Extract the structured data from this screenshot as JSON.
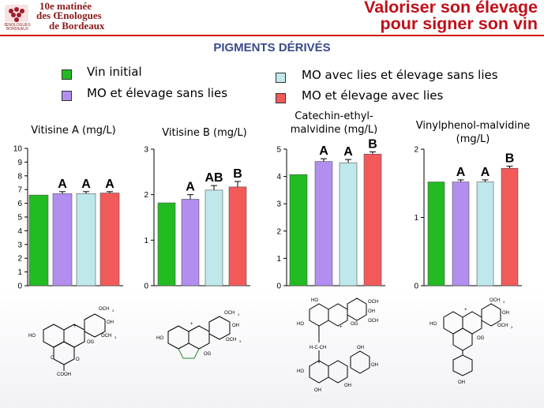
{
  "header": {
    "logo_text": "ŒNOLOGUES BORDEAUX",
    "line1": "10e matinée",
    "line2": "des Œnologues",
    "line3": "de Bordeaux",
    "title_line1": "Valoriser son élevage",
    "title_line2": "pour signer son vin"
  },
  "page_title": "PIGMENTS DÉRIVÉS",
  "legend": [
    {
      "label": "Vin initial",
      "color": "#22bb22"
    },
    {
      "label": "MO et élevage sans lies",
      "color": "#b28ef0"
    },
    {
      "label": "MO avec lies et élevage sans lies",
      "color": "#bfe8ec"
    },
    {
      "label": "MO et élevage avec lies",
      "color": "#f25a5a"
    }
  ],
  "chart_data": [
    {
      "type": "bar",
      "title": "Vitisine A (mg/L)",
      "categories": [
        "Vin initial",
        "MO et élevage sans lies",
        "MO avec lies et élevage sans lies",
        "MO et élevage avec lies"
      ],
      "values": [
        6.6,
        6.7,
        6.7,
        6.75
      ],
      "errors": [
        0,
        0.15,
        0.15,
        0.1
      ],
      "letters": [
        "",
        "A",
        "A",
        "A"
      ],
      "ylim": [
        0,
        10
      ],
      "yticks": [
        "0",
        "1",
        "2",
        "3",
        "4",
        "5",
        "6",
        "7",
        "8",
        "9",
        "10"
      ]
    },
    {
      "type": "bar",
      "title": "Vitisine B (mg/L)",
      "categories": [
        "Vin initial",
        "MO et élevage sans lies",
        "MO avec lies et élevage sans lies",
        "MO et élevage avec lies"
      ],
      "values": [
        1.82,
        1.9,
        2.1,
        2.17
      ],
      "errors": [
        0,
        0.1,
        0.1,
        0.12
      ],
      "letters": [
        "",
        "A",
        "AB",
        "B"
      ],
      "ylim": [
        0,
        3
      ],
      "yticks": [
        "0",
        "1",
        "2",
        "3"
      ]
    },
    {
      "type": "bar",
      "title": "Catechin-ethyl-\nmalvidine (mg/L)",
      "categories": [
        "Vin initial",
        "MO et élevage sans lies",
        "MO avec lies et élevage sans lies",
        "MO et élevage avec lies"
      ],
      "values": [
        4.07,
        4.55,
        4.5,
        4.82
      ],
      "errors": [
        0,
        0.1,
        0.12,
        0.08
      ],
      "letters": [
        "",
        "A",
        "A",
        "B"
      ],
      "ylim": [
        0,
        5
      ],
      "yticks": [
        "0",
        "1",
        "2",
        "3",
        "4",
        "5"
      ]
    },
    {
      "type": "bar",
      "title": "Vinylphenol-malvidine\n(mg/L)",
      "categories": [
        "Vin initial",
        "MO et élevage sans lies",
        "MO avec lies et élevage sans lies",
        "MO et élevage avec lies"
      ],
      "values": [
        1.52,
        1.52,
        1.52,
        1.72
      ],
      "errors": [
        0,
        0.03,
        0.03,
        0.03
      ],
      "letters": [
        "",
        "A",
        "A",
        "B"
      ],
      "ylim": [
        0,
        2
      ],
      "yticks": [
        "0",
        "1",
        "2"
      ]
    }
  ]
}
